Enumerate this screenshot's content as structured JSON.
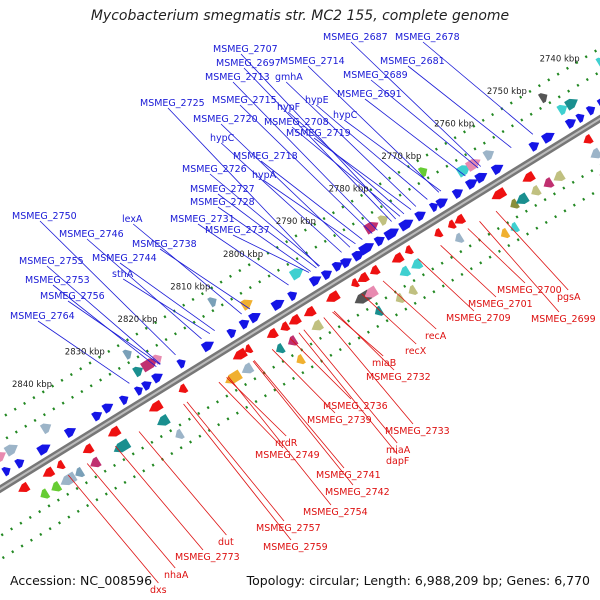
{
  "title": "Mycobacterium smegmatis str. MC2 155, complete genome",
  "accession": "Accession: NC_008596",
  "topology": "Topology: circular; Length: 6,988,209 bp; Genes: 6,770",
  "colors": {
    "forward_label": "#1a1ad6",
    "reverse_label": "#dd1111",
    "forward_gene": "#1515e6",
    "reverse_gene": "#ee1111",
    "backbone": "#777777",
    "tick_dots": "#228822"
  },
  "kbp_ticks": [
    "2740 kbp",
    "2750 kbp",
    "2760 kbp",
    "2770 kbp",
    "2780 kbp",
    "2790 kbp",
    "2800 kbp",
    "2810 kbp",
    "2820 kbp",
    "2830 kbp",
    "2840 kbp"
  ],
  "forward_labels": [
    "MSMEG_2687",
    "MSMEG_2678",
    "MSMEG_2707",
    "MSMEG_2714",
    "MSMEG_2697",
    "MSMEG_2681",
    "MSMEG_2713",
    "gmhA",
    "MSMEG_2689",
    "MSMEG_2725",
    "MSMEG_2715",
    "hypF",
    "hypE",
    "MSMEG_2691",
    "MSMEG_2720",
    "MSMEG_2708",
    "hypC",
    "MSMEG_2719",
    "hypC",
    "MSMEG_2718",
    "MSMEG_2726",
    "hypA",
    "MSMEG_2727",
    "MSMEG_2728",
    "lexA",
    "MSMEG_2750",
    "MSMEG_2731",
    "MSMEG_2737",
    "MSMEG_2746",
    "MSMEG_2738",
    "MSMEG_2744",
    "MSMEG_2755",
    "sthA",
    "MSMEG_2753",
    "MSMEG_2756",
    "MSMEG_2764"
  ],
  "reverse_labels": [
    "MSMEG_2700",
    "pgsA",
    "MSMEG_2701",
    "MSMEG_2709",
    "MSMEG_2699",
    "recA",
    "recX",
    "miaB",
    "MSMEG_2732",
    "MSMEG_2736",
    "MSMEG_2739",
    "MSMEG_2733",
    "nrdR",
    "miaA",
    "MSMEG_2749",
    "dapF",
    "MSMEG_2741",
    "MSMEG_2742",
    "MSMEG_2754",
    "dut",
    "MSMEG_2757",
    "MSMEG_2759",
    "MSMEG_2773",
    "nhaA",
    "dxs"
  ]
}
